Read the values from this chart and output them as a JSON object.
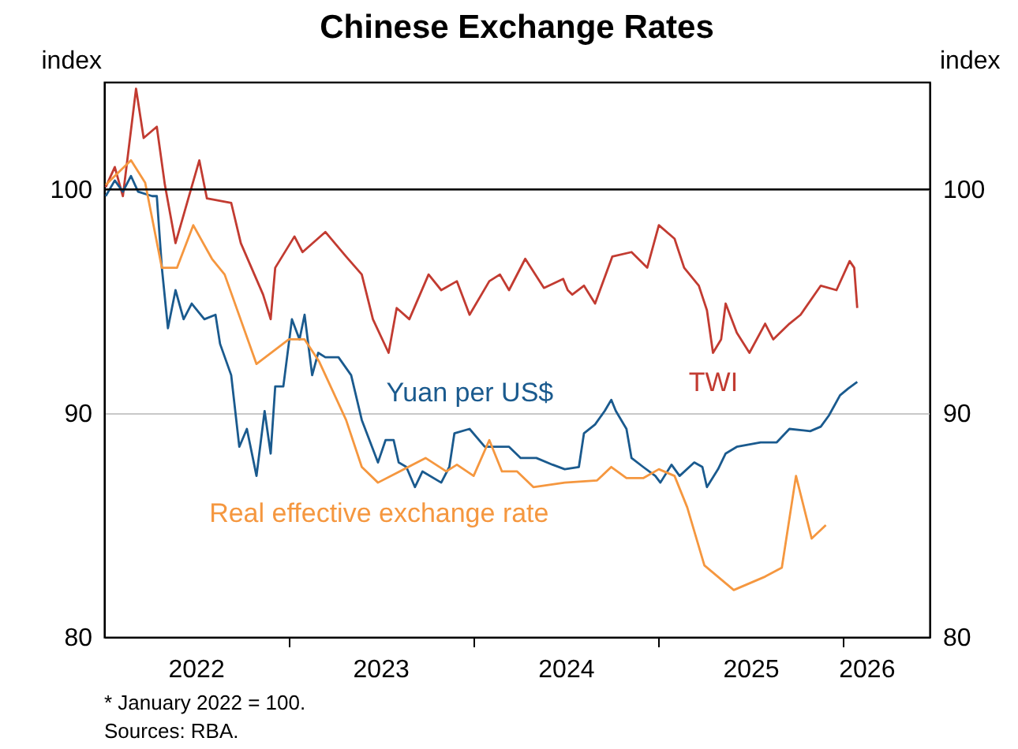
{
  "chart_data": {
    "type": "line",
    "title": "Chinese Exchange Rates",
    "ylabel": "index",
    "y2label": "index",
    "xlim": [
      "2022-01-01",
      "2026-06-20"
    ],
    "xticks": [
      {
        "value": "2022-07-01",
        "label": "2022"
      },
      {
        "value": "2023-01-01",
        "label": null
      },
      {
        "value": "2023-07-01",
        "label": "2023"
      },
      {
        "value": "2024-01-01",
        "label": null
      },
      {
        "value": "2024-07-01",
        "label": "2024"
      },
      {
        "value": "2025-01-01",
        "label": null
      },
      {
        "value": "2025-07-01",
        "label": "2025"
      },
      {
        "value": "2026-01-01",
        "label": null
      },
      {
        "value": "2026-02-15",
        "label": "2026"
      }
    ],
    "ylim": [
      80,
      104.8
    ],
    "yticks": [
      80,
      90,
      100
    ],
    "y2lim": [
      80,
      104.8
    ],
    "y2ticks": [
      80,
      90,
      100
    ],
    "grid": "y",
    "ref_lines": [
      {
        "axis": "y",
        "value": 100,
        "color": "#000000"
      }
    ],
    "annotations": [
      "*    January 2022 = 100.",
      "Sources: RBA."
    ],
    "series": [
      {
        "name": "TWI",
        "color": "#c23b31",
        "x": [
          "2022-01-04",
          "2022-01-22",
          "2022-02-07",
          "2022-03-05",
          "2022-03-20",
          "2022-04-15",
          "2022-05-01",
          "2022-05-22",
          "2022-06-10",
          "2022-07-08",
          "2022-07-23",
          "2022-09-09",
          "2022-09-28",
          "2022-11-11",
          "2022-11-26",
          "2022-12-05",
          "2023-01-12",
          "2023-01-28",
          "2023-03-14",
          "2023-04-24",
          "2023-05-25",
          "2023-06-16",
          "2023-07-17",
          "2023-08-02",
          "2023-08-27",
          "2023-10-04",
          "2023-10-29",
          "2023-11-29",
          "2023-12-24",
          "2024-02-01",
          "2024-02-22",
          "2024-03-11",
          "2024-04-12",
          "2024-05-19",
          "2024-06-26",
          "2024-07-05",
          "2024-07-14",
          "2024-08-06",
          "2024-08-28",
          "2024-10-01",
          "2024-11-08",
          "2024-12-09",
          "2025-01-01",
          "2025-02-01",
          "2025-02-20",
          "2025-03-21",
          "2025-04-06",
          "2025-04-18",
          "2025-05-04",
          "2025-05-13",
          "2025-06-04",
          "2025-06-29",
          "2025-07-30",
          "2025-08-15",
          "2025-09-16",
          "2025-10-08",
          "2025-11-17",
          "2025-12-18",
          "2026-01-13",
          "2026-01-22",
          "2026-01-28"
        ],
        "values": [
          100.1,
          101.0,
          99.7,
          104.5,
          102.3,
          102.8,
          100.2,
          97.6,
          99.1,
          101.3,
          99.6,
          99.4,
          97.6,
          95.3,
          94.2,
          96.5,
          97.9,
          97.2,
          98.1,
          97.0,
          96.2,
          94.2,
          92.7,
          94.7,
          94.2,
          96.2,
          95.5,
          95.9,
          94.4,
          95.9,
          96.2,
          95.5,
          96.9,
          95.6,
          96.0,
          95.5,
          95.3,
          95.7,
          94.9,
          97.0,
          97.2,
          96.5,
          98.4,
          97.8,
          96.5,
          95.7,
          94.6,
          92.7,
          93.3,
          94.9,
          93.6,
          92.7,
          94.0,
          93.3,
          94.0,
          94.4,
          95.7,
          95.5,
          96.8,
          96.5,
          94.7
        ]
      },
      {
        "name": "Yuan per US$",
        "color": "#1a5a8e",
        "x": [
          "2022-01-04",
          "2022-01-22",
          "2022-02-07",
          "2022-02-23",
          "2022-03-09",
          "2022-04-06",
          "2022-04-15",
          "2022-04-25",
          "2022-05-07",
          "2022-05-22",
          "2022-06-07",
          "2022-06-23",
          "2022-07-18",
          "2022-08-09",
          "2022-08-18",
          "2022-09-09",
          "2022-09-25",
          "2022-10-10",
          "2022-10-29",
          "2022-11-14",
          "2022-11-26",
          "2022-12-05",
          "2022-12-21",
          "2023-01-07",
          "2023-01-22",
          "2023-02-01",
          "2023-02-16",
          "2023-02-28",
          "2023-03-14",
          "2023-04-09",
          "2023-05-04",
          "2023-05-25",
          "2023-06-26",
          "2023-07-11",
          "2023-07-27",
          "2023-08-06",
          "2023-08-21",
          "2023-09-07",
          "2023-09-22",
          "2023-10-29",
          "2023-11-14",
          "2023-11-24",
          "2023-12-24",
          "2024-01-23",
          "2024-02-11",
          "2024-03-11",
          "2024-04-03",
          "2024-05-04",
          "2024-06-05",
          "2024-06-29",
          "2024-07-27",
          "2024-08-06",
          "2024-08-28",
          "2024-09-16",
          "2024-09-29",
          "2024-10-08",
          "2024-10-29",
          "2024-11-08",
          "2024-12-01",
          "2024-12-25",
          "2025-01-04",
          "2025-01-26",
          "2025-02-11",
          "2025-03-12",
          "2025-03-28",
          "2025-04-06",
          "2025-04-28",
          "2025-05-13",
          "2025-06-04",
          "2025-07-21",
          "2025-08-22",
          "2025-09-16",
          "2025-10-27",
          "2025-11-17",
          "2025-12-03",
          "2025-12-25",
          "2026-01-10",
          "2026-01-28"
        ],
        "values": [
          99.7,
          100.4,
          99.9,
          100.6,
          99.9,
          99.7,
          99.7,
          96.5,
          93.8,
          95.5,
          94.2,
          94.9,
          94.2,
          94.4,
          93.1,
          91.7,
          88.5,
          89.3,
          87.2,
          90.1,
          88.2,
          91.2,
          91.2,
          94.2,
          93.3,
          94.4,
          91.7,
          92.7,
          92.5,
          92.5,
          91.7,
          89.7,
          87.8,
          88.8,
          88.8,
          87.8,
          87.6,
          86.7,
          87.4,
          86.9,
          87.6,
          89.1,
          89.3,
          88.5,
          88.5,
          88.5,
          88.0,
          88.0,
          87.7,
          87.5,
          87.6,
          89.1,
          89.5,
          90.1,
          90.6,
          90.1,
          89.3,
          88.0,
          87.6,
          87.2,
          86.9,
          87.7,
          87.2,
          87.8,
          87.6,
          86.7,
          87.5,
          88.2,
          88.5,
          88.7,
          88.7,
          89.3,
          89.2,
          89.4,
          89.9,
          90.8,
          91.1,
          91.4
        ]
      },
      {
        "name": "Real effective exchange rate",
        "color": "#f5973f",
        "x": [
          "2022-01-04",
          "2022-02-23",
          "2022-03-23",
          "2022-04-25",
          "2022-05-25",
          "2022-06-26",
          "2022-08-02",
          "2022-08-27",
          "2022-10-29",
          "2023-01-01",
          "2023-02-01",
          "2023-03-02",
          "2023-04-24",
          "2023-05-25",
          "2023-06-26",
          "2023-09-28",
          "2023-11-08",
          "2023-11-29",
          "2024-01-01",
          "2024-02-01",
          "2024-02-26",
          "2024-03-27",
          "2024-04-28",
          "2024-06-29",
          "2024-09-01",
          "2024-09-29",
          "2024-10-29",
          "2024-12-01",
          "2025-01-01",
          "2025-02-01",
          "2025-02-26",
          "2025-04-01",
          "2025-05-29",
          "2025-07-30",
          "2025-09-01",
          "2025-09-29",
          "2025-10-30",
          "2025-11-27"
        ],
        "values": [
          100.2,
          101.3,
          100.3,
          96.5,
          96.5,
          98.4,
          96.9,
          96.2,
          92.2,
          93.3,
          93.3,
          92.3,
          89.7,
          87.6,
          86.9,
          88.0,
          87.4,
          87.7,
          87.2,
          88.8,
          87.4,
          87.4,
          86.7,
          86.9,
          87.0,
          87.6,
          87.1,
          87.1,
          87.5,
          87.2,
          85.8,
          83.2,
          82.1,
          82.7,
          83.1,
          87.2,
          84.4,
          85.0
        ]
      }
    ]
  }
}
